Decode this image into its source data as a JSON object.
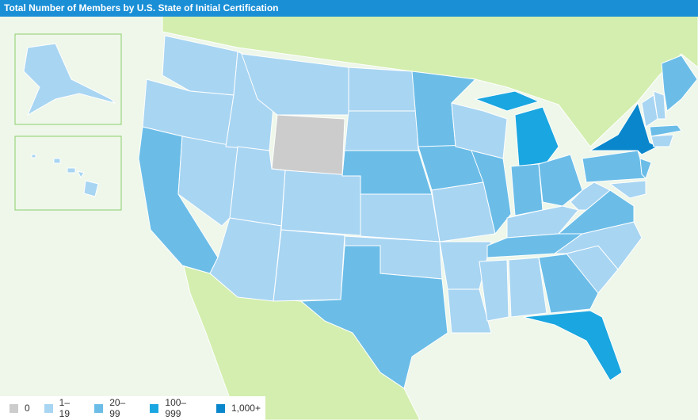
{
  "header": {
    "title": "Total Number of Members by U.S. State of Initial Certification"
  },
  "legend": {
    "items": [
      {
        "label": "0",
        "color": "#cccccc"
      },
      {
        "label": "1–19",
        "color": "#a8d5f2"
      },
      {
        "label": "20–99",
        "color": "#6bbde8"
      },
      {
        "label": "100–999",
        "color": "#1aa6e0"
      },
      {
        "label": "1,000+",
        "color": "#0a87cc"
      }
    ]
  }
}
